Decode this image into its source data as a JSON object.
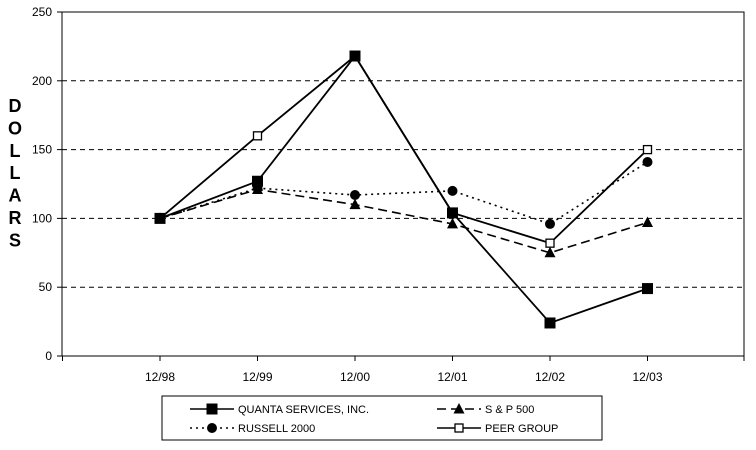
{
  "chart_data": {
    "type": "line",
    "title": "",
    "xlabel": "",
    "ylabel": "DOLLARS",
    "categories": [
      "12/98",
      "12/99",
      "12/00",
      "12/01",
      "12/02",
      "12/03"
    ],
    "yticks": [
      "0",
      "50",
      "100",
      "150",
      "200",
      "250"
    ],
    "ylim": [
      0,
      250
    ],
    "grid": "horizontal dashed",
    "legend_position": "bottom",
    "series": [
      {
        "name": "QUANTA SERVICES, INC.",
        "values": [
          100,
          127,
          218,
          104,
          24,
          49
        ],
        "marker": "filled-square",
        "line": "solid"
      },
      {
        "name": "S & P 500",
        "values": [
          100,
          121,
          110,
          96,
          75,
          97
        ],
        "marker": "filled-triangle",
        "line": "dashed"
      },
      {
        "name": "RUSSELL 2000",
        "values": [
          100,
          122,
          117,
          120,
          96,
          141
        ],
        "marker": "filled-circle",
        "line": "dotted"
      },
      {
        "name": "PEER GROUP",
        "values": [
          100,
          160,
          218,
          104,
          82,
          150
        ],
        "marker": "open-square",
        "line": "solid"
      }
    ]
  }
}
